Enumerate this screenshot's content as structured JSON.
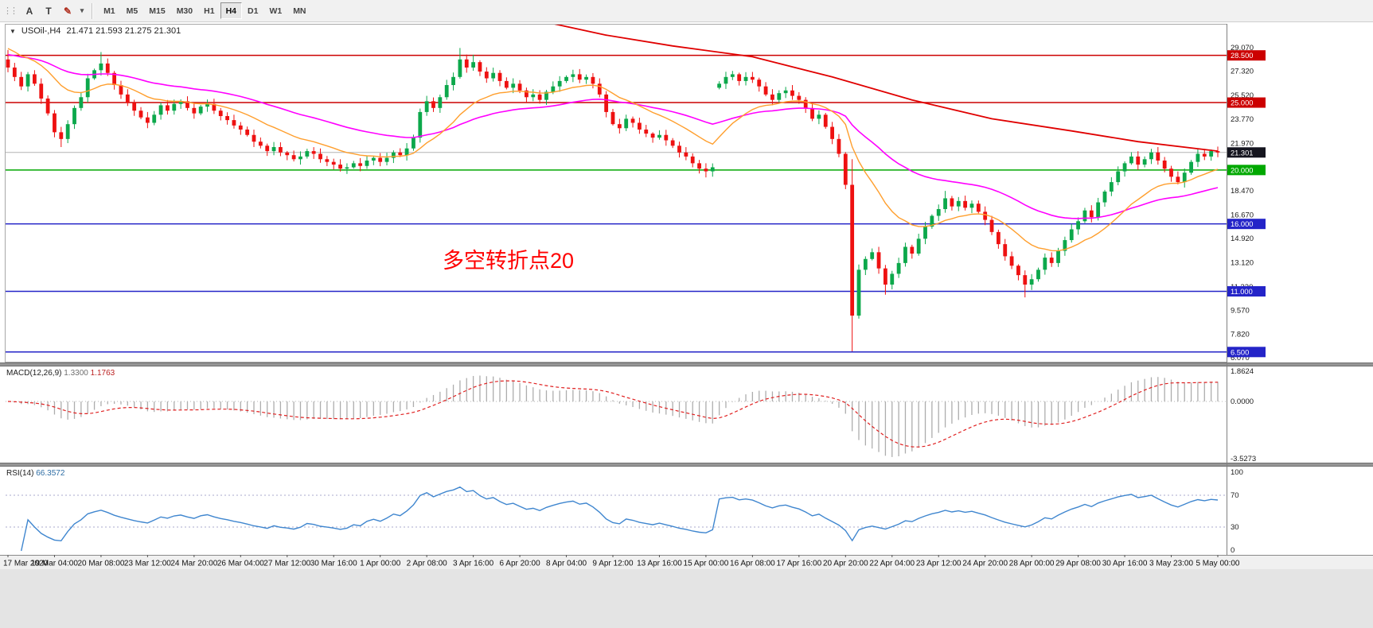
{
  "toolbar": {
    "grip_glyph": "⋮⋮",
    "icons": [
      {
        "name": "font-a-icon",
        "glyph": "A"
      },
      {
        "name": "text-tool-icon",
        "glyph": "T"
      },
      {
        "name": "draw-colors-icon",
        "glyph": "✎"
      },
      {
        "name": "chevron-down-icon",
        "glyph": "▾"
      }
    ],
    "timeframes": [
      "M1",
      "M5",
      "M15",
      "M30",
      "H1",
      "H4",
      "D1",
      "W1",
      "MN"
    ],
    "active_timeframe": "H4"
  },
  "chart": {
    "collapse_glyph": "▼",
    "symbol_label": "USOil-,H4",
    "ohlc_label": "21.471 21.593 21.275 21.301",
    "annotation": "多空转折点20"
  },
  "chart_data": {
    "type": "candlestick",
    "symbol": "USOil-",
    "timeframe": "H4",
    "up_color": "#0ca84b",
    "down_color": "#ee1111",
    "closes": [
      27.6,
      26.9,
      26.2,
      27.1,
      26.4,
      25.3,
      24.2,
      22.8,
      22.3,
      23.4,
      24.6,
      25.4,
      26.8,
      27.4,
      27.9,
      27.2,
      26.3,
      25.6,
      25.0,
      24.4,
      23.9,
      23.5,
      24.1,
      24.8,
      24.4,
      24.9,
      25.1,
      24.6,
      24.2,
      24.7,
      24.9,
      24.4,
      24.0,
      23.7,
      23.3,
      23.0,
      22.6,
      22.1,
      21.8,
      21.4,
      21.7,
      21.3,
      21.1,
      20.8,
      21.0,
      21.4,
      21.2,
      20.8,
      20.6,
      20.4,
      20.1,
      20.2,
      20.5,
      20.3,
      20.7,
      20.9,
      20.6,
      20.9,
      21.3,
      21.1,
      21.6,
      22.4,
      24.3,
      25.1,
      24.6,
      25.4,
      26.3,
      26.9,
      28.2,
      27.6,
      28.0,
      27.3,
      26.8,
      27.2,
      26.6,
      26.1,
      26.4,
      25.9,
      25.4,
      25.6,
      25.2,
      25.8,
      26.2,
      26.6,
      26.9,
      27.1,
      26.7,
      26.9,
      26.4,
      25.6,
      24.3,
      23.4,
      23.1,
      23.8,
      23.5,
      23.0,
      22.7,
      22.4,
      22.6,
      22.2,
      21.8,
      21.3,
      21.0,
      20.5,
      20.1,
      19.9,
      20.2,
      26.4,
      26.9,
      27.1,
      26.6,
      26.9,
      26.7,
      26.2,
      25.6,
      25.2,
      25.7,
      25.9,
      25.5,
      25.2,
      24.6,
      23.8,
      24.1,
      23.2,
      22.3,
      21.2,
      18.9,
      9.2,
      12.6,
      13.4,
      13.9,
      12.7,
      11.5,
      12.3,
      13.1,
      14.3,
      13.8,
      14.9,
      15.8,
      16.6,
      17.1,
      17.9,
      17.3,
      17.7,
      17.2,
      17.5,
      16.9,
      16.3,
      15.4,
      14.5,
      13.6,
      12.9,
      12.2,
      11.5,
      11.9,
      12.6,
      13.5,
      13.1,
      14.0,
      14.8,
      15.6,
      16.2,
      17.0,
      16.5,
      17.6,
      18.4,
      19.1,
      19.9,
      20.5,
      21.0,
      20.4,
      20.8,
      21.3,
      20.7,
      20.1,
      19.5,
      19.1,
      19.8,
      20.6,
      21.2,
      21.0,
      21.4,
      21.301
    ],
    "open_overrides": {
      "0": 28.2,
      "107": 26.1
    },
    "high_overrides": {
      "0": 28.9,
      "14": 28.75,
      "68": 29.05,
      "70": 28.55,
      "109": 27.35,
      "127": 20.8,
      "141": 18.45
    },
    "low_overrides": {
      "8": 21.7,
      "105": 19.45,
      "127": 6.55,
      "132": 10.75,
      "153": 10.55
    },
    "moving_averages": {
      "fast": {
        "period": 16,
        "seed": 29.2,
        "color": "#ff9f2e"
      },
      "slow": {
        "period": 44,
        "seed": 28.6,
        "color": "#ff00ff"
      },
      "long": {
        "color": "#e00000",
        "waypoints": [
          [
            58,
            34.0
          ],
          [
            75,
            31.6
          ],
          [
            90,
            30.0
          ],
          [
            100,
            29.2
          ],
          [
            112,
            28.4
          ],
          [
            124,
            26.9
          ],
          [
            136,
            25.2
          ],
          [
            148,
            23.8
          ],
          [
            160,
            22.9
          ],
          [
            170,
            22.1
          ],
          [
            182,
            21.4
          ]
        ]
      }
    },
    "hlines": [
      {
        "price": 28.5,
        "color": "#cc0000",
        "label": "28.500"
      },
      {
        "price": 25.0,
        "color": "#cc0000",
        "label": "25.000"
      },
      {
        "price": 20.0,
        "color": "#00a800",
        "label": "20.000"
      },
      {
        "price": 16.0,
        "color": "#2424c8",
        "label": "16.000"
      },
      {
        "price": 11.0,
        "color": "#2424c8",
        "label": "11.000"
      },
      {
        "price": 6.5,
        "color": "#2424c8",
        "label": "6.500"
      }
    ],
    "bid_line": {
      "price": 21.301,
      "line_color": "#b3b3b3",
      "label": "21.301",
      "badge_color": "#15151f"
    },
    "price_ticks": [
      "29.070",
      "27.320",
      "25.520",
      "23.770",
      "21.970",
      "18.470",
      "16.670",
      "14.920",
      "13.120",
      "11.320",
      "9.570",
      "7.820",
      "6.070"
    ],
    "price_range": {
      "top": 30.84,
      "bottom": 5.8
    },
    "x_labels": [
      "17 Mar 2020",
      "19 Mar 04:00",
      "20 Mar 08:00",
      "23 Mar 12:00",
      "24 Mar 20:00",
      "26 Mar 04:00",
      "27 Mar 12:00",
      "30 Mar 16:00",
      "1 Apr 00:00",
      "2 Apr 08:00",
      "3 Apr 16:00",
      "6 Apr 20:00",
      "8 Apr 04:00",
      "9 Apr 12:00",
      "13 Apr 16:00",
      "15 Apr 00:00",
      "16 Apr 08:00",
      "17 Apr 16:00",
      "20 Apr 20:00",
      "22 Apr 04:00",
      "23 Apr 12:00",
      "24 Apr 20:00",
      "28 Apr 00:00",
      "29 Apr 08:00",
      "30 Apr 16:00",
      "3 May 23:00",
      "5 May 00:00"
    ],
    "bars_per_label": 7,
    "indicators": {
      "macd": {
        "label": "MACD(12,26,9)",
        "value_main": "1.3300",
        "value_signal": "1.1763",
        "fast": 12,
        "slow": 26,
        "signal": 9,
        "axis": [
          "1.8624",
          "0.0000",
          "-3.5273"
        ],
        "range": [
          -3.5273,
          1.8624
        ],
        "histogram_color": "#adadad",
        "signal_color": "#e02020"
      },
      "rsi": {
        "label": "RSI(14)",
        "value": "66.3572",
        "period": 14,
        "axis_top": "100",
        "axis_high": "70",
        "axis_low": "30",
        "axis_bottom": "0",
        "levels": [
          70,
          30
        ],
        "line_color": "#3f86cf",
        "level_color": "#a8a8cc"
      }
    }
  }
}
